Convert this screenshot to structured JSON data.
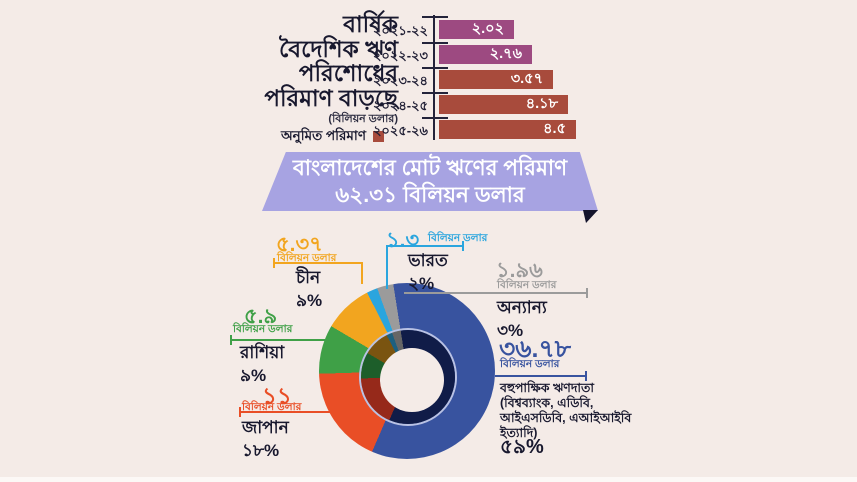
{
  "page": {
    "background": "#f4ebe7"
  },
  "bar_chart": {
    "title_lines": [
      "বার্ষিক",
      "বৈদেশিক ঋণ",
      "পরিশোধের",
      "পরিমাণ বাড়ছে"
    ],
    "unit_note": "(বিলিয়ন ডলার)",
    "legend_label": "অনুমিত পরিমাণ",
    "colors": {
      "actual": "#9d4a81",
      "estimated": "#a84b3c"
    },
    "rows": [
      {
        "year": "২০২১-২২",
        "value": 2.02,
        "value_label": "২.০২",
        "type": "actual"
      },
      {
        "year": "২০২২-২৩",
        "value": 2.76,
        "value_label": "২.৭৬",
        "type": "actual"
      },
      {
        "year": "২০২৩-২৪",
        "value": 3.57,
        "value_label": "৩.৫৭",
        "type": "estimated"
      },
      {
        "year": "২০২৪-২৫",
        "value": 4.18,
        "value_label": "৪.১৮",
        "type": "estimated"
      },
      {
        "year": "২০২৫-২৬",
        "value": 4.5,
        "value_label": "৪.৫",
        "type": "estimated"
      }
    ],
    "max_value": 4.5
  },
  "banner": {
    "line1": "বাংলাদেশের মোট ঋণের পরিমাণ",
    "line2": "৬২.৩১ বিলিয়ন ডলার",
    "background": "#a7a3e2",
    "fold_color": "#14142c"
  },
  "donut": {
    "unit_label": "বিলিয়ন ডলার",
    "outline_color": "#b9c2e4",
    "segments": [
      {
        "name": "বহুপাক্ষিক ঋণদাতা",
        "detail": "(বিশ্বব্যাংক, এডিবি, আইএসডিবি, এআইআইবি ইত্যাদি)",
        "value": 36.78,
        "value_label": "৩৬.৭৮",
        "percent": 59,
        "percent_label": "৫৯%",
        "color": "#38539f",
        "dark": "#101c48"
      },
      {
        "name": "জাপান",
        "value": 11,
        "value_label": "১১",
        "percent": 18,
        "percent_label": "১৮%",
        "color": "#e94e26",
        "dark": "#96291a"
      },
      {
        "name": "রাশিয়া",
        "value": 5.9,
        "value_label": "৫.৯",
        "percent": 9,
        "percent_label": "৯%",
        "color": "#3fa047",
        "dark": "#1d5e2a"
      },
      {
        "name": "চীন",
        "value": 5.37,
        "value_label": "৫.৩৭",
        "percent": 9,
        "percent_label": "৯%",
        "color": "#f2a51f",
        "dark": "#7a5410"
      },
      {
        "name": "ভারত",
        "value": 1.3,
        "value_label": "১.৩",
        "percent": 2,
        "percent_label": "২%",
        "color": "#2aa5de",
        "dark": "#1d6080"
      },
      {
        "name": "অন্যান্য",
        "value": 1.96,
        "value_label": "১.৯৬",
        "percent": 3,
        "percent_label": "৩%",
        "color": "#9b9b9b",
        "dark": "#666666"
      }
    ]
  },
  "chart_data": [
    {
      "type": "bar",
      "orientation": "horizontal",
      "title": "বার্ষিক বৈদেশিক ঋণ পরিশোধের পরিমাণ বাড়ছে",
      "ylabel": "",
      "xlabel": "বিলিয়ন ডলার",
      "categories": [
        "২০২১-২২",
        "২০২২-২৩",
        "২০২৩-২৪",
        "২০২৪-২৫",
        "২০২৫-২৬"
      ],
      "values": [
        2.02,
        2.76,
        3.57,
        4.18,
        4.5
      ],
      "estimated": [
        false,
        false,
        true,
        true,
        true
      ],
      "legend": [
        "অনুমিত পরিমাণ"
      ],
      "xlim": [
        0,
        4.5
      ],
      "grid": false
    },
    {
      "type": "pie",
      "title": "বাংলাদেশের মোট ঋণের পরিমাণ ৬২.৩১ বিলিয়ন ডলার",
      "total": 62.31,
      "unit": "বিলিয়ন ডলার",
      "categories": [
        "বহুপাক্ষিক ঋণদাতা (বিশ্বব্যাংক, এডিবি, আইএসডিবি, এআইআইবি ইত্যাদি)",
        "জাপান",
        "রাশিয়া",
        "চীন",
        "ভারত",
        "অন্যান্য"
      ],
      "values": [
        36.78,
        11,
        5.9,
        5.37,
        1.3,
        1.96
      ],
      "percents": [
        59,
        18,
        9,
        9,
        2,
        3
      ],
      "start_angle_deg": -9,
      "direction": "clockwise",
      "legend_position": "callout-labels"
    }
  ]
}
